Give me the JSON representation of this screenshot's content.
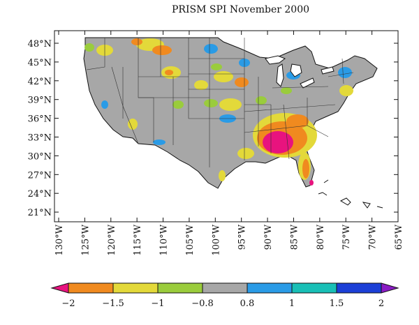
{
  "title": "PRISM SPI November 2000",
  "lat_labels": [
    "48°N",
    "45°N",
    "42°N",
    "39°N",
    "36°N",
    "33°N",
    "30°N",
    "27°N",
    "24°N",
    "21°N"
  ],
  "lon_labels": [
    "130°W",
    "125°W",
    "120°W",
    "115°W",
    "110°W",
    "105°W",
    "100°W",
    "95°W",
    "90°W",
    "85°W",
    "80°W",
    "75°W",
    "70°W",
    "65°W"
  ],
  "legend": {
    "colors": [
      "#e8137e",
      "#f08a1f",
      "#e3d93a",
      "#9acc3c",
      "#a7a7a7",
      "#2a9be6",
      "#19bfb6",
      "#1b3fd6",
      "#8a1cc4"
    ],
    "breaks": [
      "−2",
      "−1.5",
      "−1",
      "−0.8",
      "0.8",
      "1",
      "1.5",
      "2"
    ]
  },
  "colors": {
    "land": "#a7a7a7",
    "ocean": "#ffffff",
    "coast": "#111111",
    "border": "#333333"
  }
}
